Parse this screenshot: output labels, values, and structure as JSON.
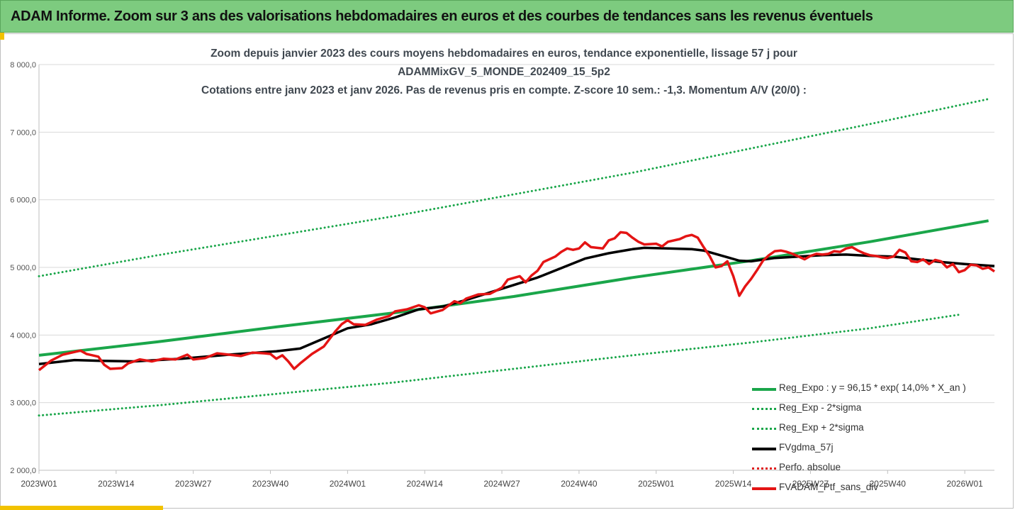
{
  "banner": {
    "title": "ADAM Informe. Zoom sur 3 ans des valorisations hebdomadaires en euros et des courbes de tendances sans les revenus éventuels"
  },
  "chart_data": {
    "type": "line",
    "title_lines": [
      "Zoom depuis janvier 2023 des cours moyens hebdomadaires  en euros, tendance exponentielle, lissage 57 j pour",
      "ADAMMixGV_5_MONDE_202409_15_5p2",
      "Cotations entre janv 2023 et janv 2026. Pas de revenus pris en compte. Z-score 10 sem.: -1,3. Momentum A/V (20/0) :"
    ],
    "x_tick_labels": [
      "2023W01",
      "2023W14",
      "2023W27",
      "2023W40",
      "2024W01",
      "2024W14",
      "2024W27",
      "2024W40",
      "2025W01",
      "2025W14",
      "2025W27",
      "2025W40",
      "2026W01"
    ],
    "x_tick_weeks": [
      0,
      13,
      26,
      39,
      52,
      65,
      78,
      91,
      104,
      117,
      130,
      143,
      156
    ],
    "x_range_weeks": [
      0,
      161
    ],
    "ylim": [
      2000,
      8000
    ],
    "y_ticks": [
      2000,
      3000,
      4000,
      5000,
      6000,
      7000,
      8000
    ],
    "y_tick_labels": [
      "2 000,0",
      "3 000,0",
      "4 000,0",
      "5 000,0",
      "6 000,0",
      "7 000,0",
      "8 000,0"
    ],
    "grid": "horizontal",
    "legend_position": "bottom-right",
    "series": [
      {
        "key": "reg",
        "name": "Reg_Expo : y = 96,15 * exp( 14,0% *  X_an )",
        "color": "#1aa64a",
        "style": "solid",
        "points": [
          [
            0,
            3700
          ],
          [
            20,
            3900
          ],
          [
            40,
            4120
          ],
          [
            60,
            4330
          ],
          [
            80,
            4570
          ],
          [
            100,
            4850
          ],
          [
            120,
            5100
          ],
          [
            140,
            5380
          ],
          [
            160,
            5690
          ]
        ]
      },
      {
        "key": "lower",
        "name": "Reg_Exp - 2*sigma",
        "color": "#1aa64a",
        "style": "dotted",
        "points": [
          [
            0,
            2810
          ],
          [
            20,
            2960
          ],
          [
            40,
            3130
          ],
          [
            60,
            3300
          ],
          [
            80,
            3500
          ],
          [
            100,
            3700
          ],
          [
            120,
            3890
          ],
          [
            140,
            4100
          ],
          [
            155,
            4300
          ]
        ]
      },
      {
        "key": "upper",
        "name": "Reg_Exp + 2*sigma",
        "color": "#1aa64a",
        "style": "dotted",
        "points": [
          [
            0,
            4870
          ],
          [
            20,
            5180
          ],
          [
            40,
            5470
          ],
          [
            60,
            5760
          ],
          [
            80,
            6080
          ],
          [
            100,
            6400
          ],
          [
            120,
            6760
          ],
          [
            140,
            7120
          ],
          [
            160,
            7490
          ]
        ]
      },
      {
        "key": "smooth",
        "name": "FVgdma_57j",
        "color": "#000000",
        "style": "solid",
        "points": [
          [
            0,
            3570
          ],
          [
            6,
            3630
          ],
          [
            10,
            3620
          ],
          [
            16,
            3610
          ],
          [
            24,
            3650
          ],
          [
            32,
            3710
          ],
          [
            40,
            3760
          ],
          [
            44,
            3800
          ],
          [
            48,
            3950
          ],
          [
            52,
            4100
          ],
          [
            56,
            4160
          ],
          [
            60,
            4260
          ],
          [
            64,
            4380
          ],
          [
            68,
            4420
          ],
          [
            72,
            4520
          ],
          [
            76,
            4630
          ],
          [
            80,
            4740
          ],
          [
            84,
            4850
          ],
          [
            88,
            4990
          ],
          [
            92,
            5130
          ],
          [
            96,
            5210
          ],
          [
            100,
            5270
          ],
          [
            102,
            5290
          ],
          [
            106,
            5280
          ],
          [
            110,
            5270
          ],
          [
            112,
            5250
          ],
          [
            116,
            5150
          ],
          [
            118,
            5100
          ],
          [
            120,
            5090
          ],
          [
            124,
            5140
          ],
          [
            128,
            5160
          ],
          [
            132,
            5180
          ],
          [
            136,
            5190
          ],
          [
            140,
            5170
          ],
          [
            144,
            5160
          ],
          [
            148,
            5120
          ],
          [
            152,
            5080
          ],
          [
            156,
            5050
          ],
          [
            161,
            5020
          ]
        ]
      },
      {
        "key": "perf",
        "name": "Perfo. absolue",
        "color": "#e02020",
        "style": "dotted",
        "points": []
      },
      {
        "key": "price",
        "name": "FVADAM_Ptf_sans_div",
        "color": "#e41414",
        "style": "solid",
        "points": [
          [
            0,
            3480
          ],
          [
            2,
            3620
          ],
          [
            4,
            3710
          ],
          [
            6,
            3750
          ],
          [
            7,
            3770
          ],
          [
            8,
            3720
          ],
          [
            10,
            3680
          ],
          [
            11,
            3560
          ],
          [
            12,
            3500
          ],
          [
            14,
            3510
          ],
          [
            15,
            3580
          ],
          [
            17,
            3640
          ],
          [
            19,
            3610
          ],
          [
            21,
            3650
          ],
          [
            23,
            3640
          ],
          [
            25,
            3710
          ],
          [
            26,
            3640
          ],
          [
            28,
            3660
          ],
          [
            30,
            3730
          ],
          [
            32,
            3710
          ],
          [
            34,
            3690
          ],
          [
            36,
            3740
          ],
          [
            38,
            3730
          ],
          [
            39,
            3720
          ],
          [
            40,
            3650
          ],
          [
            41,
            3700
          ],
          [
            42,
            3610
          ],
          [
            43,
            3500
          ],
          [
            44,
            3580
          ],
          [
            46,
            3720
          ],
          [
            48,
            3830
          ],
          [
            50,
            4060
          ],
          [
            51,
            4160
          ],
          [
            52,
            4220
          ],
          [
            53,
            4160
          ],
          [
            55,
            4150
          ],
          [
            57,
            4230
          ],
          [
            59,
            4280
          ],
          [
            60,
            4350
          ],
          [
            62,
            4380
          ],
          [
            64,
            4440
          ],
          [
            65,
            4410
          ],
          [
            66,
            4320
          ],
          [
            68,
            4370
          ],
          [
            70,
            4500
          ],
          [
            71,
            4470
          ],
          [
            72,
            4540
          ],
          [
            74,
            4600
          ],
          [
            76,
            4610
          ],
          [
            78,
            4700
          ],
          [
            79,
            4820
          ],
          [
            81,
            4870
          ],
          [
            82,
            4780
          ],
          [
            83,
            4880
          ],
          [
            84,
            4950
          ],
          [
            85,
            5080
          ],
          [
            87,
            5160
          ],
          [
            88,
            5230
          ],
          [
            89,
            5280
          ],
          [
            90,
            5260
          ],
          [
            91,
            5280
          ],
          [
            92,
            5370
          ],
          [
            93,
            5300
          ],
          [
            95,
            5280
          ],
          [
            96,
            5400
          ],
          [
            97,
            5430
          ],
          [
            98,
            5520
          ],
          [
            99,
            5510
          ],
          [
            100,
            5440
          ],
          [
            101,
            5380
          ],
          [
            102,
            5340
          ],
          [
            104,
            5350
          ],
          [
            105,
            5310
          ],
          [
            106,
            5380
          ],
          [
            108,
            5420
          ],
          [
            109,
            5460
          ],
          [
            110,
            5480
          ],
          [
            111,
            5440
          ],
          [
            112,
            5300
          ],
          [
            113,
            5170
          ],
          [
            114,
            5000
          ],
          [
            115,
            5020
          ],
          [
            116,
            5090
          ],
          [
            117,
            4870
          ],
          [
            118,
            4580
          ],
          [
            119,
            4720
          ],
          [
            120,
            4830
          ],
          [
            121,
            4960
          ],
          [
            122,
            5100
          ],
          [
            123,
            5180
          ],
          [
            124,
            5240
          ],
          [
            125,
            5250
          ],
          [
            126,
            5230
          ],
          [
            127,
            5200
          ],
          [
            128,
            5160
          ],
          [
            129,
            5120
          ],
          [
            130,
            5170
          ],
          [
            131,
            5200
          ],
          [
            132,
            5190
          ],
          [
            133,
            5200
          ],
          [
            134,
            5240
          ],
          [
            135,
            5230
          ],
          [
            136,
            5280
          ],
          [
            137,
            5300
          ],
          [
            138,
            5250
          ],
          [
            139,
            5210
          ],
          [
            140,
            5180
          ],
          [
            141,
            5170
          ],
          [
            142,
            5150
          ],
          [
            143,
            5140
          ],
          [
            144,
            5160
          ],
          [
            145,
            5260
          ],
          [
            146,
            5220
          ],
          [
            147,
            5090
          ],
          [
            148,
            5080
          ],
          [
            149,
            5120
          ],
          [
            150,
            5050
          ],
          [
            151,
            5110
          ],
          [
            152,
            5090
          ],
          [
            153,
            5000
          ],
          [
            154,
            5050
          ],
          [
            155,
            4930
          ],
          [
            156,
            4960
          ],
          [
            157,
            5040
          ],
          [
            158,
            5030
          ],
          [
            159,
            4980
          ],
          [
            160,
            5000
          ],
          [
            161,
            4940
          ]
        ]
      }
    ]
  }
}
